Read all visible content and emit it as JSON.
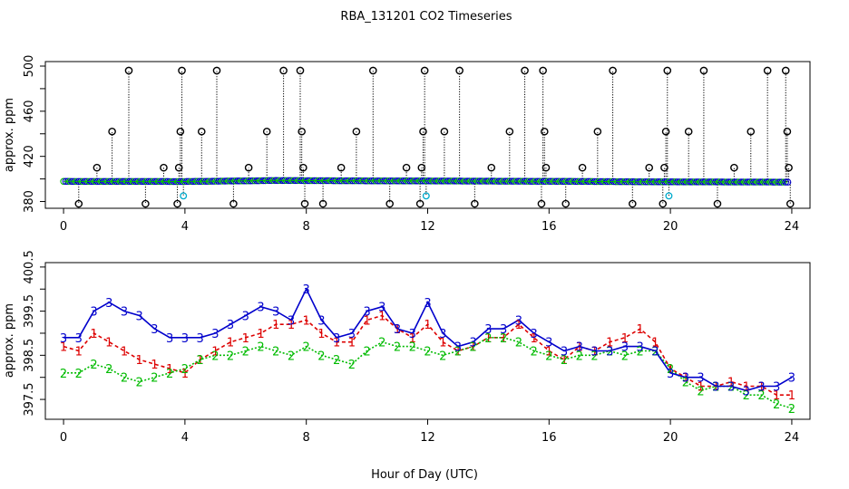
{
  "page_title": "RBA_131201  CO2 Timeseries",
  "xlabel_common": "Hour of Day (UTC)",
  "colors": {
    "series1": "#dd0000",
    "series2": "#00bb00",
    "series3": "#0000cc",
    "outlier": "#000000",
    "low": "#00aacc"
  },
  "chart_data": [
    {
      "type": "scatter",
      "title": "RBA_131201  CO2 Timeseries",
      "xlabel": "Hour of Day (UTC)",
      "ylabel": "approx. ppm",
      "xlim": [
        -0.6,
        24.6
      ],
      "ylim": [
        374,
        504
      ],
      "x_ticks": [
        0,
        4,
        8,
        12,
        16,
        20,
        24
      ],
      "x_tick_labels": [
        "0",
        "4",
        "8",
        "12",
        "16",
        "20",
        "24"
      ],
      "y_ticks": [
        380,
        400,
        420,
        440,
        460,
        480,
        500
      ],
      "y_tick_labels": [
        "380",
        "",
        "420",
        "",
        "460",
        "",
        "500"
      ],
      "baseline": [
        [
          0,
          397.8
        ],
        [
          4,
          397.7
        ],
        [
          7,
          398.6
        ],
        [
          8,
          398.5
        ],
        [
          12,
          398.2
        ],
        [
          16,
          397.9
        ],
        [
          20,
          397.4
        ],
        [
          24,
          397.2
        ]
      ],
      "outliers_high": [
        {
          "x": 2.15,
          "y": 496
        },
        {
          "x": 3.9,
          "y": 496
        },
        {
          "x": 5.05,
          "y": 496
        },
        {
          "x": 7.25,
          "y": 496
        },
        {
          "x": 7.8,
          "y": 496
        },
        {
          "x": 10.2,
          "y": 496
        },
        {
          "x": 11.9,
          "y": 496
        },
        {
          "x": 13.05,
          "y": 496
        },
        {
          "x": 15.2,
          "y": 496
        },
        {
          "x": 15.8,
          "y": 496
        },
        {
          "x": 18.1,
          "y": 496
        },
        {
          "x": 19.9,
          "y": 496
        },
        {
          "x": 21.1,
          "y": 496
        },
        {
          "x": 23.2,
          "y": 496
        },
        {
          "x": 23.8,
          "y": 496
        },
        {
          "x": 1.6,
          "y": 442
        },
        {
          "x": 3.85,
          "y": 442
        },
        {
          "x": 4.55,
          "y": 442
        },
        {
          "x": 6.7,
          "y": 442
        },
        {
          "x": 7.85,
          "y": 442
        },
        {
          "x": 9.65,
          "y": 442
        },
        {
          "x": 11.85,
          "y": 442
        },
        {
          "x": 12.55,
          "y": 442
        },
        {
          "x": 14.7,
          "y": 442
        },
        {
          "x": 15.85,
          "y": 442
        },
        {
          "x": 17.6,
          "y": 442
        },
        {
          "x": 19.85,
          "y": 442
        },
        {
          "x": 20.6,
          "y": 442
        },
        {
          "x": 22.65,
          "y": 442
        },
        {
          "x": 23.85,
          "y": 442
        },
        {
          "x": 1.1,
          "y": 410
        },
        {
          "x": 3.3,
          "y": 410
        },
        {
          "x": 3.8,
          "y": 410
        },
        {
          "x": 6.1,
          "y": 410
        },
        {
          "x": 7.9,
          "y": 410
        },
        {
          "x": 9.15,
          "y": 410
        },
        {
          "x": 11.3,
          "y": 410
        },
        {
          "x": 11.8,
          "y": 410
        },
        {
          "x": 14.1,
          "y": 410
        },
        {
          "x": 15.9,
          "y": 410
        },
        {
          "x": 17.1,
          "y": 410
        },
        {
          "x": 19.3,
          "y": 410
        },
        {
          "x": 19.8,
          "y": 410
        },
        {
          "x": 22.1,
          "y": 410
        },
        {
          "x": 23.9,
          "y": 410
        }
      ],
      "outliers_low": [
        {
          "x": 0.5,
          "y": 378
        },
        {
          "x": 2.7,
          "y": 378
        },
        {
          "x": 3.75,
          "y": 378
        },
        {
          "x": 5.6,
          "y": 378
        },
        {
          "x": 7.95,
          "y": 378
        },
        {
          "x": 8.55,
          "y": 378
        },
        {
          "x": 10.75,
          "y": 378
        },
        {
          "x": 11.75,
          "y": 378
        },
        {
          "x": 13.55,
          "y": 378
        },
        {
          "x": 15.75,
          "y": 378
        },
        {
          "x": 16.55,
          "y": 378
        },
        {
          "x": 18.75,
          "y": 378
        },
        {
          "x": 19.75,
          "y": 378
        },
        {
          "x": 21.55,
          "y": 378
        },
        {
          "x": 23.95,
          "y": 378
        }
      ],
      "cyan_points": [
        {
          "x": 3.95,
          "y": 385
        },
        {
          "x": 11.95,
          "y": 385
        },
        {
          "x": 19.95,
          "y": 385
        }
      ]
    },
    {
      "type": "line",
      "title": "",
      "xlabel": "Hour of Day (UTC)",
      "ylabel": "approx. ppm",
      "xlim": [
        -0.6,
        24.6
      ],
      "ylim": [
        397.05,
        400.6
      ],
      "x_ticks": [
        0,
        4,
        8,
        12,
        16,
        20,
        24
      ],
      "x_tick_labels": [
        "0",
        "4",
        "8",
        "12",
        "16",
        "20",
        "24"
      ],
      "y_ticks": [
        397.5,
        398.0,
        398.5,
        399.0,
        399.5,
        400.0,
        400.5
      ],
      "y_tick_labels": [
        "397.5",
        "",
        "398.5",
        "",
        "399.5",
        "",
        "400.5"
      ],
      "x": [
        0.0,
        0.5,
        1.0,
        1.5,
        2.0,
        2.5,
        3.0,
        3.5,
        4.0,
        4.5,
        5.0,
        5.5,
        6.0,
        6.5,
        7.0,
        7.5,
        8.0,
        8.5,
        9.0,
        9.5,
        10.0,
        10.5,
        11.0,
        11.5,
        12.0,
        12.5,
        13.0,
        13.5,
        14.0,
        14.5,
        15.0,
        15.5,
        16.0,
        16.5,
        17.0,
        17.5,
        18.0,
        18.5,
        19.0,
        19.5,
        20.0,
        20.5,
        21.0,
        21.5,
        22.0,
        22.5,
        23.0,
        23.5,
        24.0
      ],
      "series": [
        {
          "name": "1",
          "marker": "1",
          "values": [
            398.7,
            398.6,
            399.0,
            398.8,
            398.6,
            398.4,
            398.3,
            398.2,
            398.1,
            398.4,
            398.6,
            398.8,
            398.9,
            399.0,
            399.2,
            399.2,
            399.3,
            399.0,
            398.8,
            398.8,
            399.3,
            399.4,
            399.1,
            398.9,
            399.2,
            398.8,
            398.6,
            398.7,
            398.9,
            398.9,
            399.2,
            398.9,
            398.6,
            398.4,
            398.7,
            398.6,
            398.8,
            398.9,
            399.1,
            398.8,
            398.2,
            398.0,
            397.8,
            397.8,
            397.9,
            397.8,
            397.8,
            397.6,
            397.6
          ]
        },
        {
          "name": "2",
          "marker": "2",
          "values": [
            398.1,
            398.1,
            398.3,
            398.2,
            398.0,
            397.9,
            398.0,
            398.1,
            398.2,
            398.4,
            398.5,
            398.5,
            398.6,
            398.7,
            398.6,
            398.5,
            398.7,
            398.5,
            398.4,
            398.3,
            398.6,
            398.8,
            398.7,
            398.7,
            398.6,
            398.5,
            398.6,
            398.7,
            398.9,
            398.9,
            398.8,
            398.6,
            398.5,
            398.4,
            398.5,
            398.5,
            398.6,
            398.5,
            398.6,
            398.6,
            398.2,
            397.9,
            397.7,
            397.8,
            397.8,
            397.6,
            397.6,
            397.4,
            397.3
          ]
        },
        {
          "name": "3",
          "marker": "3",
          "values": [
            398.9,
            398.9,
            399.5,
            399.7,
            399.5,
            399.4,
            399.1,
            398.9,
            398.9,
            398.9,
            399.0,
            399.2,
            399.4,
            399.6,
            399.5,
            399.3,
            400.0,
            399.3,
            398.9,
            399.0,
            399.5,
            399.6,
            399.1,
            399.0,
            399.7,
            399.0,
            398.7,
            398.8,
            399.1,
            399.1,
            399.3,
            399.0,
            398.8,
            398.6,
            398.7,
            398.6,
            398.6,
            398.7,
            398.7,
            398.6,
            398.1,
            398.0,
            398.0,
            397.8,
            397.8,
            397.7,
            397.8,
            397.8,
            398.0
          ]
        }
      ]
    }
  ]
}
